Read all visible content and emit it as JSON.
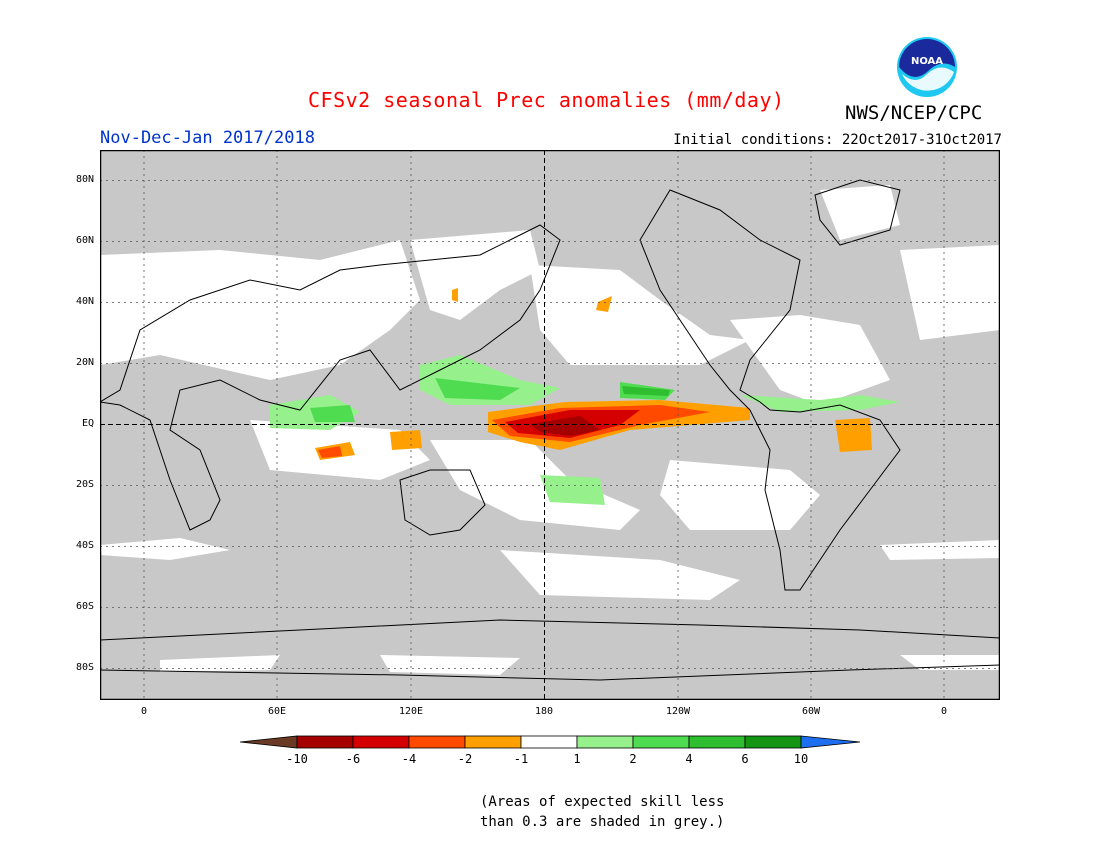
{
  "title": "CFSv2 seasonal Prec anomalies (mm/day)",
  "season": "Nov-Dec-Jan 2017/2018",
  "initial_conditions": "Initial conditions: 22Oct2017-31Oct2017",
  "organization": "NWS/NCEP/CPC",
  "logo_text": "NOAA",
  "latitude_labels": [
    "80N",
    "60N",
    "40N",
    "20N",
    "EQ",
    "20S",
    "40S",
    "60S",
    "80S"
  ],
  "longitude_labels": [
    "0",
    "60E",
    "120E",
    "180",
    "120W",
    "60W",
    "0"
  ],
  "legend": {
    "labels": [
      "-10",
      "-6",
      "-4",
      "-2",
      "-1",
      "1",
      "2",
      "4",
      "6",
      "10"
    ],
    "colors": [
      "#6b3a24",
      "#a50000",
      "#d40000",
      "#ff4a00",
      "#ffa000",
      "#ffffff",
      "#96f08c",
      "#50dc50",
      "#2fbe2f",
      "#149614",
      "#1e6ef0"
    ]
  },
  "note": [
    "(Areas of expected skill less",
    "than 0.3 are shaded in grey.)"
  ],
  "colors": {
    "skill_grey": "#c8c8c8",
    "title_red": "#ff0000",
    "subtitle_blue": "#0033cc"
  }
}
